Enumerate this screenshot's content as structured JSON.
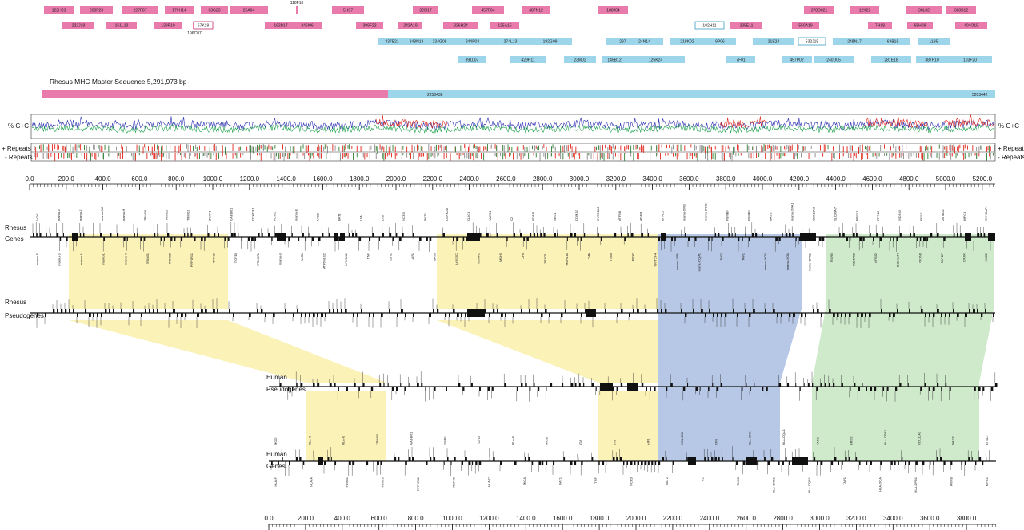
{
  "colors": {
    "pink": "#e87aac",
    "blue": "#9dd6ea",
    "yellow": "#fbf2b8",
    "lavender": "#b7c8e6",
    "green": "#cfe9cb",
    "gc_blue": "#2b2fb0",
    "gc_green": "#1aa04a",
    "gc_red": "#e0261c"
  },
  "clones": {
    "row1": [
      "122H23",
      "268P23",
      "227F07",
      "179H14",
      "63G23",
      "25A04",
      "5H07",
      "326I17",
      "457F04",
      "487N12",
      "188J04",
      "378O021",
      "12K22",
      "38L02",
      "380B12"
    ],
    "row1_float": "118F10",
    "row2": [
      "222J18",
      "151L13",
      "139P19",
      "67K19",
      "162B17",
      "246I06",
      "399F22",
      "242A19",
      "326H24",
      "125A15",
      "102H11",
      "235E11",
      "550A19",
      "7H18",
      "65H09",
      "404O15"
    ],
    "row2_float": "196C07",
    "row3": [
      "337E21",
      "348N13",
      "234G08",
      "244P03",
      "274L13",
      "192G09",
      "297D07",
      "24N14",
      "218K02",
      "9P06",
      "21E24",
      "532J15",
      "248N17",
      "63B15",
      "11B5"
    ],
    "row4": [
      "391L07",
      "429H11",
      "23M02",
      "145B12",
      "125K24",
      "7F01",
      "457P02",
      "240D05",
      "281E18",
      "387P10",
      "103F20"
    ]
  },
  "master": {
    "title": "Rhesus MHC Master Sequence 5,291,973 bp",
    "mid_label": "2250438",
    "end_label": "5203442"
  },
  "tracks": {
    "gc_label": "% G+C",
    "repeats_plus": "+ Repeats",
    "repeats_minus": "- Repeats"
  },
  "axis_top": {
    "ticks": [
      "0.0",
      "200.0",
      "400.0",
      "600.0",
      "800.0",
      "1000.0",
      "1200.0",
      "1400.0",
      "1600.0",
      "1800.0",
      "2000.0",
      "2200.0",
      "2400.0",
      "2600.0",
      "2800.0",
      "3000.0",
      "3200.0",
      "3400.0",
      "3600.0",
      "3800.0",
      "4000.0",
      "4200.0",
      "4400.0",
      "4600.0",
      "4800.0",
      "5000.0",
      "5200.0"
    ]
  },
  "axis_bottom": {
    "ticks": [
      "0.0",
      "200.0",
      "400.0",
      "600.0",
      "800.0",
      "1000.0",
      "1200.0",
      "1400.0",
      "1600.0",
      "1800.0",
      "2000.0",
      "2200.0",
      "2400.0",
      "2600.0",
      "2800.0",
      "3000.0",
      "3200.0",
      "3400.0",
      "3600.0",
      "3800.0"
    ]
  },
  "row_labels": {
    "rhesus_genes_1": "Rhesus",
    "rhesus_genes_2": "Genes",
    "rhesus_pseudo_1": "Rhesus",
    "rhesus_pseudo_2": "Pseudogenes",
    "human_pseudo_1": "Human",
    "human_pseudo_2": "Pseudogenes",
    "human_genes_1": "Human",
    "human_genes_2": "Genes"
  },
  "gene_labels": {
    "rhesus_top": [
      "MOG",
      "mamu-F",
      "mamu-V",
      "mamu-G",
      "mamu-J",
      "mamu-A",
      "mamu-A2",
      "mamu-L",
      "mamu-H",
      "mamu-K",
      "TRIM39",
      "TRIM31",
      "TRIM10",
      "TRIM26",
      "TRIM15",
      "PPP1R11",
      "ZNRF1",
      "RNF39",
      "GABBR1",
      "TCF19",
      "CCHCR1",
      "POU5F1",
      "HCG27",
      "mamu-B",
      "mamu-E",
      "MICA",
      "MICB",
      "ATP6V1G2",
      "BAT1",
      "NFKBIL1",
      "LTA",
      "TNF",
      "LTB",
      "LST1",
      "NCR3",
      "AIF1",
      "BAT2",
      "BAT3",
      "CSNK2B",
      "LY6G5C",
      "CLIC1",
      "DDAH2",
      "VARS2",
      "MSH5",
      "C2",
      "CFB",
      "RDBP",
      "SKIV2L",
      "NEU1",
      "HSPA1A",
      "DOM3Z",
      "C4A",
      "CYP21A2",
      "TNXB",
      "ATF6B",
      "PBX2",
      "AGER",
      "NOTCH4",
      "BTNL2",
      "mamu-DRA",
      "mamu-DRB",
      "mamu-DQA1",
      "mamu-DQB1",
      "TAP2",
      "PSMB8",
      "TAP1",
      "PSMB9",
      "mamu-DOB",
      "BRD2",
      "mamu-DOA",
      "mamu-DPA1",
      "mamu-DPB1",
      "COL11A2",
      "RXRB",
      "SLC39A7",
      "HSD17B8",
      "RING1",
      "VPS52",
      "RPS18",
      "B3GALT4",
      "WDR46",
      "PFDN6",
      "RGL2",
      "TAPBP",
      "ZBTB22",
      "DAXX",
      "KIFC1",
      "HKE2",
      "SYNGAP1"
    ],
    "human_bottom": [
      "MOG",
      "HLA-F",
      "HLA-G",
      "HLA-A",
      "HLA-E",
      "TRIM31",
      "TRIM10",
      "TRIM26",
      "GABBR1",
      "PPP1R11",
      "ZNRF1",
      "RNF39",
      "TCF19",
      "HLA-C",
      "HLA-B",
      "MICA",
      "MICB",
      "BAT1",
      "LTA",
      "TNF",
      "LTB",
      "NCR3",
      "AIF1",
      "BAT2",
      "CSNK2B",
      "C2",
      "CFB",
      "TNXB",
      "HLA-DRA",
      "HLA-DRB1",
      "HLA-DQA1",
      "HLA-DQB1",
      "TAP2",
      "TAP1",
      "BRD2",
      "HLA-DOA",
      "HLA-DPA1",
      "HLA-DPB1",
      "COL11A2",
      "RXRB",
      "DAXX",
      "KIFC1",
      "BTNL2"
    ]
  }
}
